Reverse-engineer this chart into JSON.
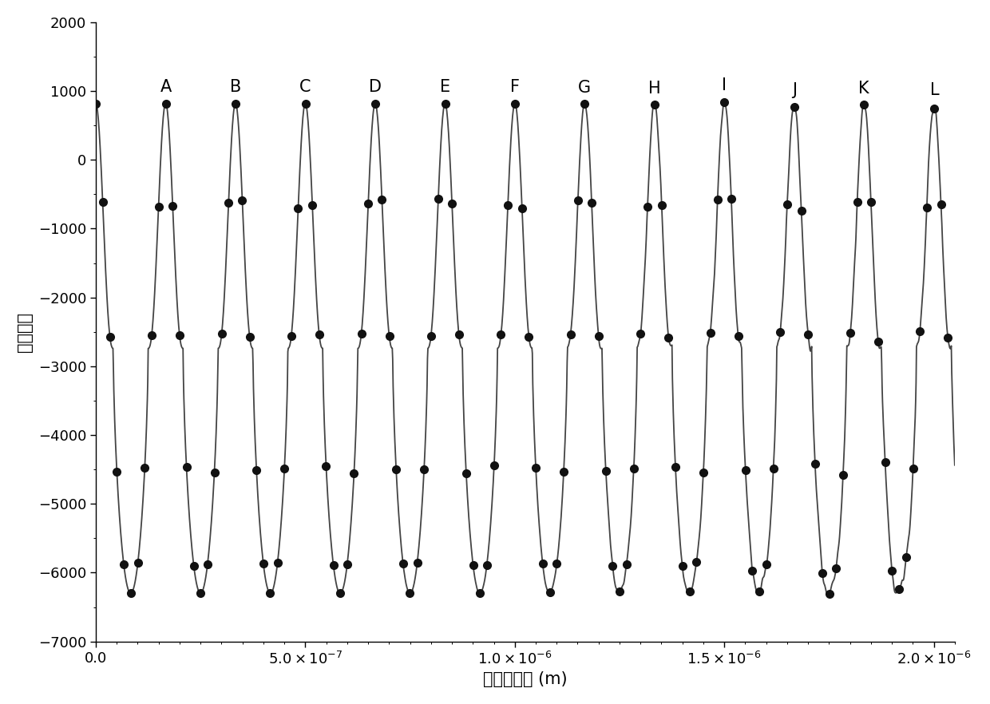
{
  "title": "",
  "xlabel": "外腔长变化 (m)",
  "ylabel": "有效增益",
  "xlim": [
    0.0,
    2.05e-06
  ],
  "ylim": [
    -7000,
    2000
  ],
  "yticks": [
    -7000,
    -6000,
    -5000,
    -4000,
    -3000,
    -2000,
    -1000,
    0,
    1000,
    2000
  ],
  "xtick_positions": [
    0.0,
    5e-07,
    1e-06,
    1.5e-06,
    2e-06
  ],
  "num_cycles": 12,
  "period": 1.667e-07,
  "labels": [
    "A",
    "B",
    "C",
    "D",
    "E",
    "F",
    "G",
    "H",
    "I",
    "J",
    "K",
    "L"
  ],
  "line_color": "#444444",
  "marker_color": "#111111",
  "background_color": "#ffffff",
  "marker_size": 7,
  "linewidth": 1.3,
  "font_size_labels": 15,
  "font_size_ticks": 13
}
